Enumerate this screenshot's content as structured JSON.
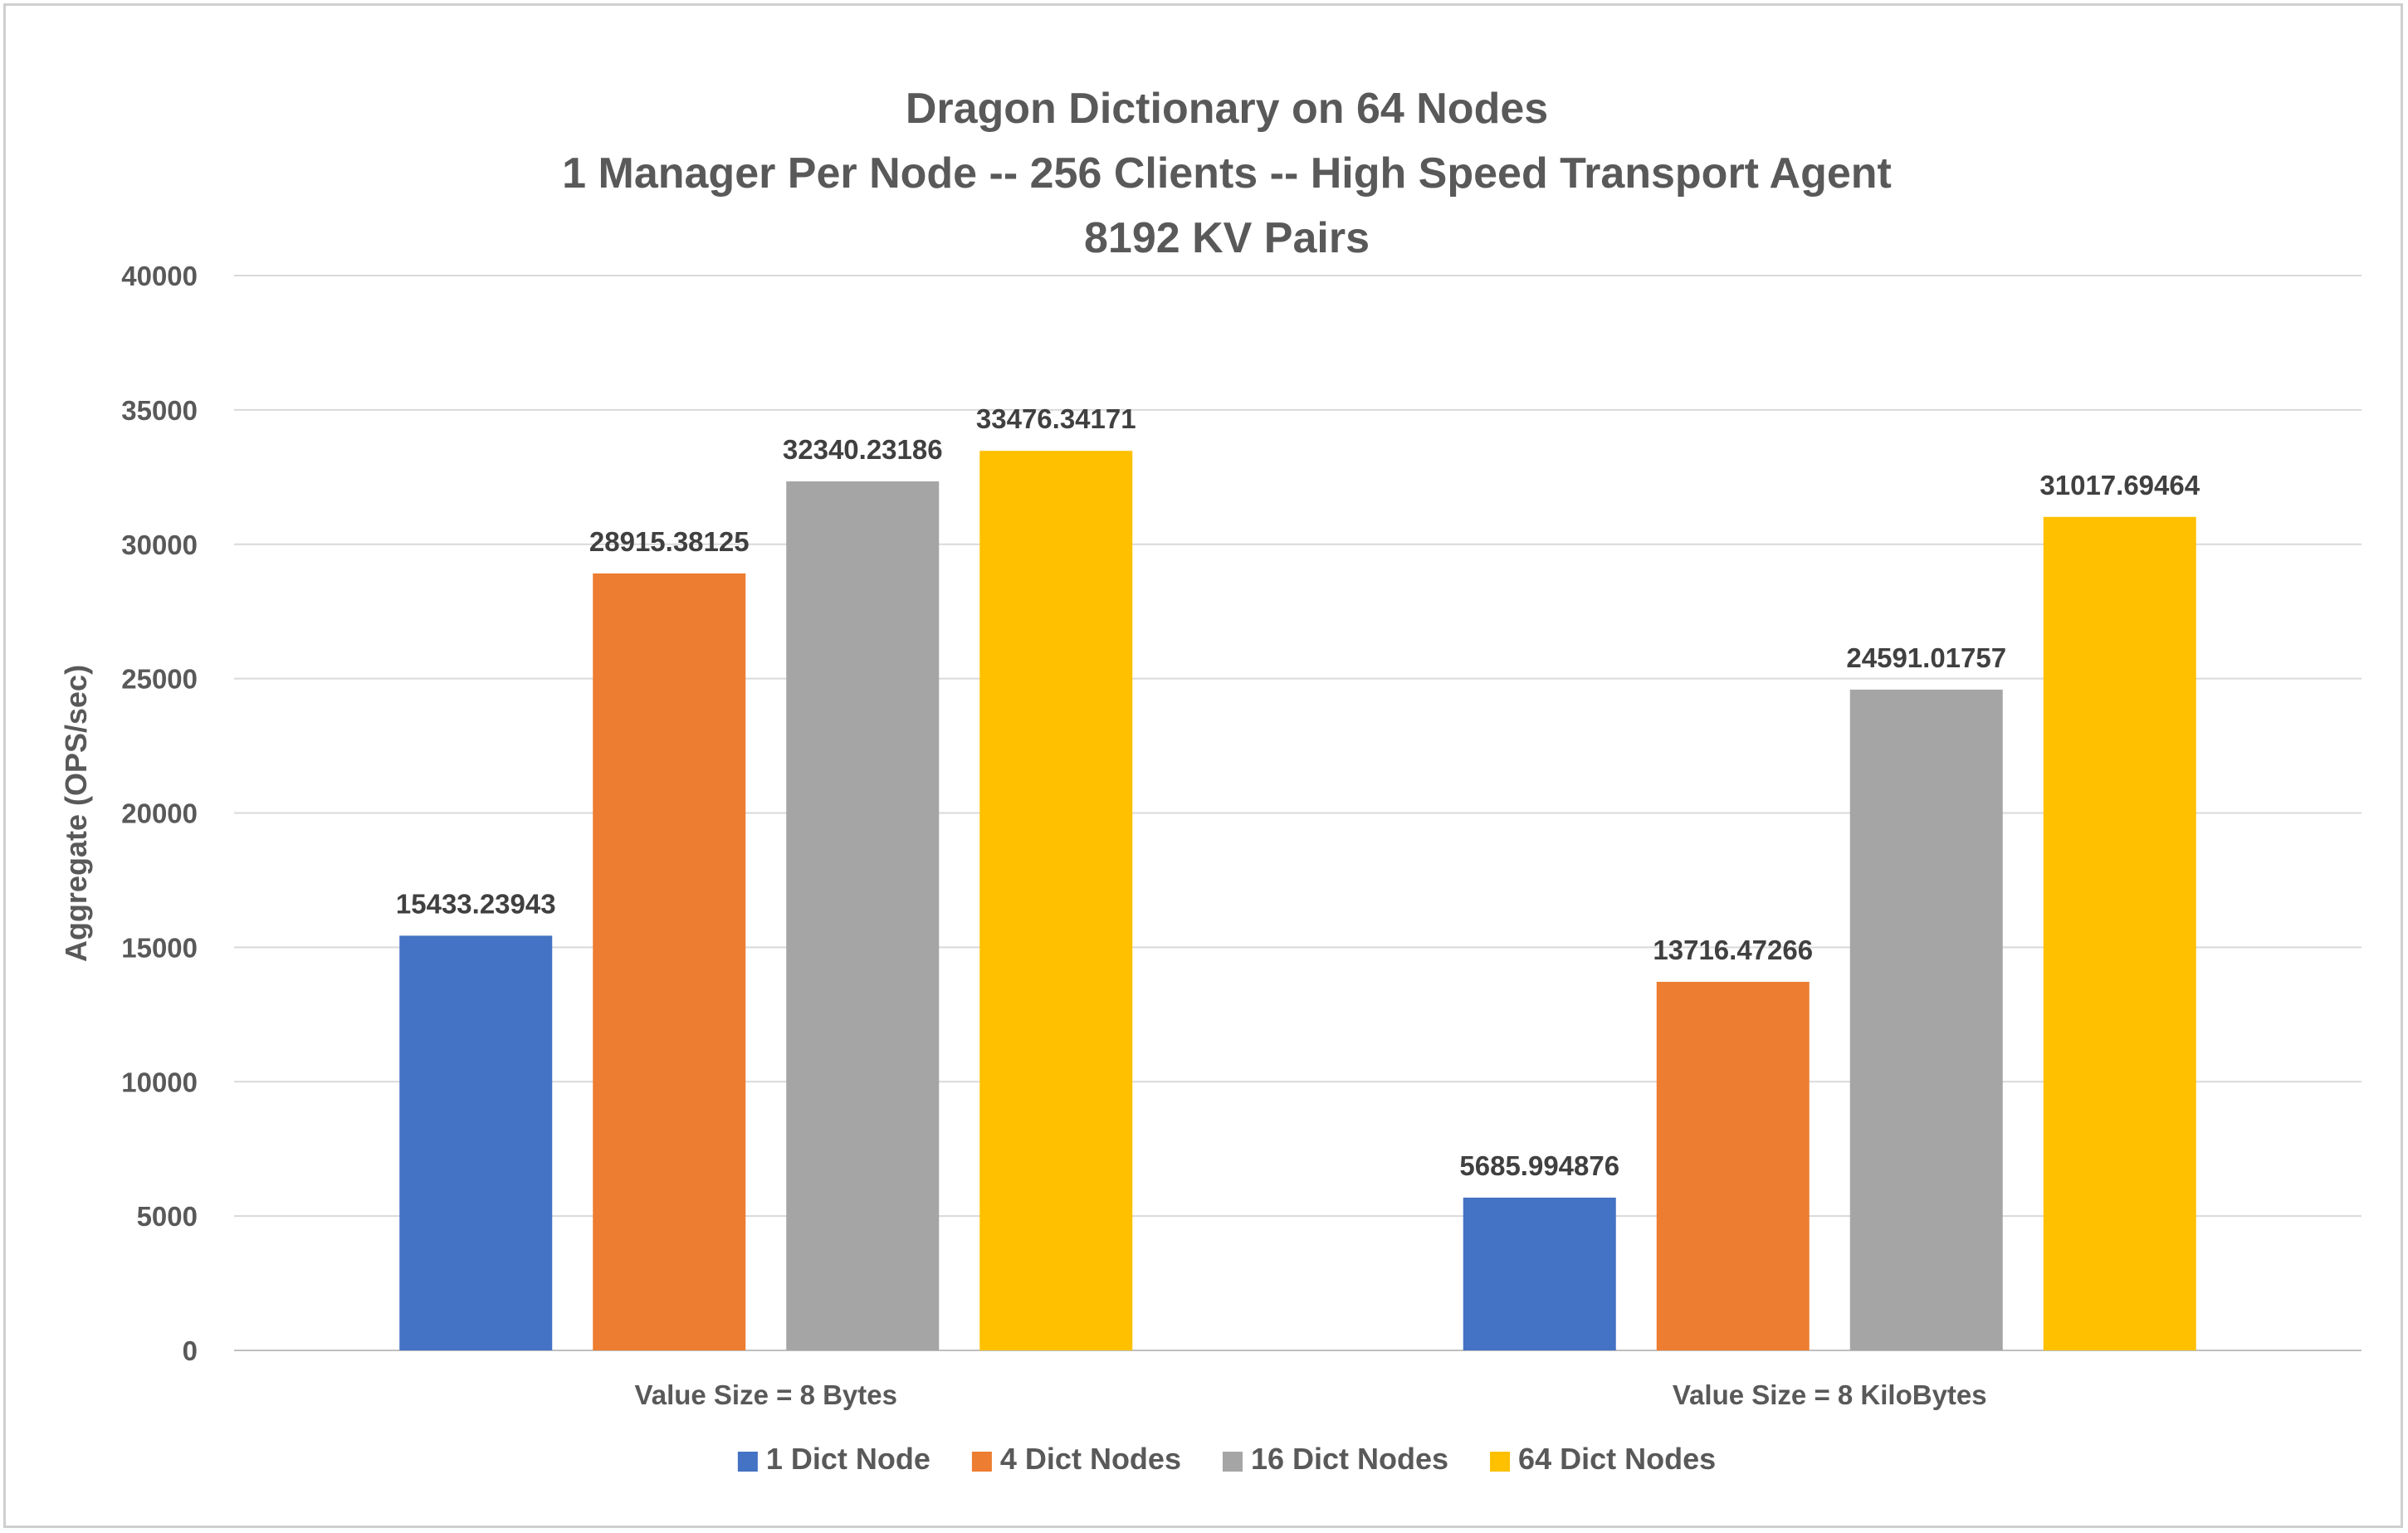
{
  "chart_data": {
    "type": "bar",
    "title": [
      "Dragon Dictionary on 64 Nodes",
      "1 Manager Per Node -- 256 Clients -- High Speed Transport Agent",
      "8192 KV Pairs"
    ],
    "ylabel": "Aggregate (OPS/sec)",
    "xlabel": "",
    "ylim": [
      0,
      40000
    ],
    "yticks": [
      "0",
      "5000",
      "10000",
      "15000",
      "20000",
      "25000",
      "30000",
      "35000",
      "40000"
    ],
    "grid": true,
    "legend_position": "bottom",
    "categories": [
      "Value Size = 8 Bytes",
      "Value Size = 8 KiloBytes"
    ],
    "series": [
      {
        "name": "1 Dict Node",
        "color": "#4472C4",
        "values": [
          15433.23943,
          5685.994876
        ],
        "labels": [
          "15433.23943",
          "5685.994876"
        ]
      },
      {
        "name": "4 Dict Nodes",
        "color": "#ED7D31",
        "values": [
          28915.38125,
          13716.47266
        ],
        "labels": [
          "28915.38125",
          "13716.47266"
        ]
      },
      {
        "name": "16 Dict Nodes",
        "color": "#A5A5A5",
        "values": [
          32340.23186,
          24591.01757
        ],
        "labels": [
          "32340.23186",
          "24591.01757"
        ]
      },
      {
        "name": "64 Dict Nodes",
        "color": "#FFC000",
        "values": [
          33476.34171,
          31017.69464
        ],
        "labels": [
          "33476.34171",
          "31017.69464"
        ]
      }
    ]
  }
}
